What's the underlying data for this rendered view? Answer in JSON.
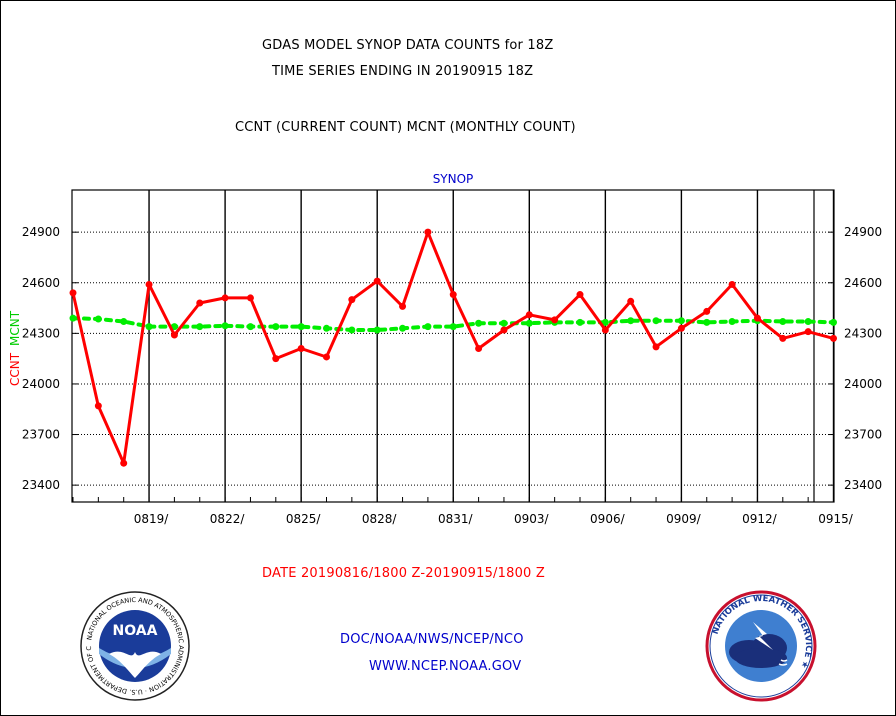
{
  "header": {
    "title_line1": "GDAS MODEL SYNOP DATA COUNTS for 18Z",
    "title_line2": "TIME SERIES ENDING IN 20190915 18Z",
    "subtitle": "CCNT (CURRENT COUNT) MCNT (MONTHLY COUNT)"
  },
  "chart_data": {
    "type": "line",
    "title": "SYNOP",
    "ylabel_ccnt": "CCNT",
    "ylabel_mcnt": "MCNT",
    "ylim": [
      23300,
      25150
    ],
    "yticks": [
      23400,
      23700,
      24000,
      24300,
      24600,
      24900
    ],
    "xticks": [
      "0819/",
      "0822/",
      "0825/",
      "0828/",
      "0831/",
      "0903/",
      "0906/",
      "0909/",
      "0912/",
      "0915/"
    ],
    "x": [
      "0816",
      "0817",
      "0818",
      "0819",
      "0820",
      "0821",
      "0822",
      "0823",
      "0824",
      "0825",
      "0826",
      "0827",
      "0828",
      "0829",
      "0830",
      "0831",
      "0901",
      "0902",
      "0903",
      "0904",
      "0905",
      "0906",
      "0907",
      "0908",
      "0909",
      "0910",
      "0911",
      "0912",
      "0913",
      "0914",
      "0915"
    ],
    "grid": true,
    "series": [
      {
        "name": "CCNT",
        "color": "#ff0000",
        "values": [
          24540,
          23870,
          23530,
          24590,
          24290,
          24480,
          24510,
          24510,
          24150,
          24210,
          24160,
          24500,
          24610,
          24460,
          24900,
          24530,
          24210,
          24320,
          24410,
          24380,
          24530,
          24320,
          24490,
          24220,
          24330,
          24430,
          24590,
          24390,
          24270,
          24310,
          24270
        ]
      },
      {
        "name": "MCNT",
        "color": "#00ee00",
        "values": [
          24390,
          24385,
          24370,
          24340,
          24340,
          24340,
          24345,
          24340,
          24340,
          24340,
          24330,
          24320,
          24320,
          24330,
          24340,
          24340,
          24360,
          24360,
          24360,
          24365,
          24365,
          24365,
          24375,
          24375,
          24375,
          24365,
          24370,
          24375,
          24370,
          24370,
          24365
        ]
      }
    ],
    "xlabel": "DATE 20190816/1800 Z-20190915/1800 Z"
  },
  "footer": {
    "line1": "DOC/NOAA/NWS/NCEP/NCO",
    "line2": "WWW.NCEP.NOAA.GOV",
    "noaa_logo_text": "NOAA",
    "noaa_ring_text": "NATIONAL OCEANIC AND ATMOSPHERIC ADMINISTRATION · U.S. DEPARTMENT OF COMMERCE ·",
    "nws_ring_text": "NATIONAL WEATHER SERVICE ★"
  }
}
